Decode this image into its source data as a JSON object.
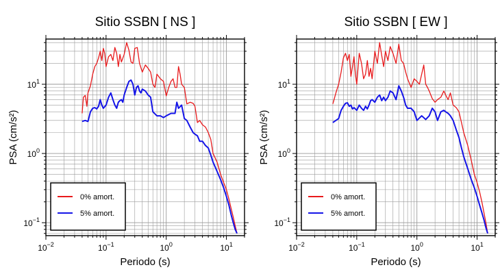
{
  "chart_data": [
    {
      "type": "line",
      "title": "Sitio SSBN [ NS ]",
      "xlabel": "Periodo (s)",
      "ylabel": "PSA (cm/s²)",
      "xscale": "log",
      "yscale": "log",
      "xlim": [
        0.01,
        20
      ],
      "ylim": [
        0.065,
        45
      ],
      "grid": true,
      "legend_placement": "bottom-left",
      "x_ticks": [
        {
          "value": 0.01,
          "base": "10",
          "exp": "−2"
        },
        {
          "value": 0.1,
          "base": "10",
          "exp": "−1"
        },
        {
          "value": 1,
          "base": "10",
          "exp": "0"
        },
        {
          "value": 10,
          "base": "10",
          "exp": "1"
        }
      ],
      "y_ticks": [
        {
          "value": 0.1,
          "base": "10",
          "exp": "−1"
        },
        {
          "value": 1,
          "base": "10",
          "exp": "0"
        },
        {
          "value": 10,
          "base": "10",
          "exp": "1"
        }
      ],
      "series": [
        {
          "name": "0% amort.",
          "color": "#e8191b",
          "x": [
            0.04,
            0.042,
            0.045,
            0.048,
            0.05,
            0.055,
            0.06,
            0.065,
            0.07,
            0.075,
            0.08,
            0.085,
            0.09,
            0.095,
            0.1,
            0.11,
            0.12,
            0.13,
            0.14,
            0.15,
            0.16,
            0.17,
            0.18,
            0.2,
            0.22,
            0.24,
            0.26,
            0.28,
            0.3,
            0.33,
            0.36,
            0.4,
            0.45,
            0.5,
            0.55,
            0.6,
            0.65,
            0.7,
            0.8,
            0.9,
            1.0,
            1.1,
            1.2,
            1.3,
            1.4,
            1.5,
            1.6,
            1.7,
            1.8,
            2.0,
            2.2,
            2.5,
            2.8,
            3.0,
            3.3,
            3.6,
            4.0,
            4.5,
            5.0,
            5.5,
            6.0,
            7.0,
            8.0,
            9.0,
            10.0,
            11.0,
            12.0,
            13.0,
            14.0,
            15.0
          ],
          "values": [
            3.8,
            6.5,
            6.9,
            4.8,
            7.5,
            9.5,
            14,
            18,
            20,
            24,
            30,
            22,
            33,
            28,
            18,
            25,
            27,
            22,
            34,
            28,
            18,
            27,
            21,
            27,
            40,
            31,
            21,
            20,
            33,
            34,
            20,
            15,
            19,
            17,
            15,
            10,
            9,
            14,
            12,
            11,
            6.8,
            9,
            11,
            12,
            9,
            9,
            18,
            14,
            10,
            9,
            5.2,
            5.5,
            5.3,
            4.8,
            2.8,
            3.0,
            2.6,
            2.4,
            2.0,
            1.6,
            1.0,
            0.75,
            0.5,
            0.38,
            0.3,
            0.22,
            0.16,
            0.12,
            0.09,
            0.07
          ]
        },
        {
          "name": "5% amort.",
          "color": "#1414e8",
          "x": [
            0.04,
            0.045,
            0.05,
            0.055,
            0.06,
            0.065,
            0.07,
            0.075,
            0.08,
            0.085,
            0.09,
            0.1,
            0.11,
            0.12,
            0.13,
            0.14,
            0.15,
            0.16,
            0.17,
            0.18,
            0.19,
            0.2,
            0.22,
            0.24,
            0.26,
            0.28,
            0.3,
            0.32,
            0.34,
            0.36,
            0.38,
            0.4,
            0.45,
            0.5,
            0.55,
            0.6,
            0.7,
            0.8,
            0.9,
            1.0,
            1.2,
            1.4,
            1.5,
            1.6,
            1.8,
            2.0,
            2.2,
            2.5,
            2.8,
            3.0,
            3.3,
            3.6,
            4.0,
            4.5,
            5.0,
            5.5,
            6.0,
            7.0,
            8.0,
            9.0,
            10.0,
            11.0,
            12.0,
            13.0,
            14.0,
            15.0
          ],
          "values": [
            2.9,
            3.0,
            2.9,
            4.0,
            4.5,
            4.6,
            4.4,
            4.8,
            6.0,
            5.0,
            4.5,
            5.0,
            6.5,
            7.5,
            6.0,
            5.0,
            4.5,
            5.5,
            5.8,
            6.0,
            5.5,
            7.0,
            9.0,
            11,
            11.5,
            10,
            7.0,
            9.0,
            9.5,
            8.0,
            7.5,
            8.5,
            8.0,
            7.0,
            6.5,
            4.0,
            3.5,
            3.5,
            3.3,
            3.5,
            3.8,
            3.8,
            5.5,
            4.5,
            5.0,
            3.2,
            3.0,
            2.4,
            2.0,
            1.9,
            1.8,
            1.5,
            1.5,
            1.3,
            1.2,
            0.95,
            0.75,
            0.55,
            0.42,
            0.32,
            0.24,
            0.18,
            0.13,
            0.1,
            0.08,
            0.07
          ]
        }
      ]
    },
    {
      "type": "line",
      "title": "Sitio SSBN [ EW ]",
      "xlabel": "Periodo (s)",
      "ylabel": "PSA (cm/s²)",
      "xscale": "log",
      "yscale": "log",
      "xlim": [
        0.01,
        20
      ],
      "ylim": [
        0.065,
        45
      ],
      "grid": true,
      "legend_placement": "bottom-left",
      "x_ticks": [
        {
          "value": 0.01,
          "base": "10",
          "exp": "−2"
        },
        {
          "value": 0.1,
          "base": "10",
          "exp": "−1"
        },
        {
          "value": 1,
          "base": "10",
          "exp": "0"
        },
        {
          "value": 10,
          "base": "10",
          "exp": "1"
        }
      ],
      "y_ticks": [
        {
          "value": 0.1,
          "base": "10",
          "exp": "−1"
        },
        {
          "value": 1,
          "base": "10",
          "exp": "0"
        },
        {
          "value": 10,
          "base": "10",
          "exp": "1"
        }
      ],
      "series": [
        {
          "name": "0% amort.",
          "color": "#e8191b",
          "x": [
            0.04,
            0.042,
            0.045,
            0.05,
            0.055,
            0.06,
            0.065,
            0.07,
            0.075,
            0.08,
            0.085,
            0.09,
            0.095,
            0.1,
            0.11,
            0.12,
            0.13,
            0.14,
            0.15,
            0.16,
            0.17,
            0.18,
            0.2,
            0.22,
            0.24,
            0.26,
            0.28,
            0.3,
            0.33,
            0.36,
            0.4,
            0.45,
            0.5,
            0.55,
            0.6,
            0.65,
            0.7,
            0.8,
            0.9,
            1.0,
            1.1,
            1.2,
            1.3,
            1.4,
            1.5,
            1.6,
            1.7,
            1.8,
            2.0,
            2.2,
            2.5,
            2.8,
            3.0,
            3.3,
            3.6,
            4.0,
            4.5,
            5.0,
            5.5,
            6.0,
            7.0,
            8.0,
            9.0,
            10.0,
            11.0,
            12.0,
            13.0,
            14.0,
            15.0
          ],
          "values": [
            5.2,
            6.0,
            7.5,
            10,
            15,
            24,
            28,
            22,
            27,
            13,
            18,
            25,
            14,
            10,
            28,
            20,
            12,
            14,
            22,
            13,
            17,
            12,
            30,
            20,
            40,
            26,
            18,
            30,
            22,
            35,
            28,
            20,
            38,
            22,
            20,
            15,
            12,
            9,
            12,
            11,
            10,
            14,
            19,
            10,
            9,
            8,
            7,
            6.2,
            5.5,
            6,
            6.5,
            8,
            7,
            6,
            7.5,
            5,
            4.6,
            4.0,
            2.8,
            2.0,
            1.3,
            0.8,
            0.5,
            0.38,
            0.28,
            0.2,
            0.14,
            0.1,
            0.07
          ]
        },
        {
          "name": "5% amort.",
          "color": "#1414e8",
          "x": [
            0.04,
            0.045,
            0.05,
            0.055,
            0.06,
            0.065,
            0.07,
            0.075,
            0.08,
            0.085,
            0.09,
            0.1,
            0.11,
            0.12,
            0.13,
            0.14,
            0.15,
            0.16,
            0.17,
            0.18,
            0.2,
            0.22,
            0.24,
            0.26,
            0.28,
            0.3,
            0.33,
            0.36,
            0.4,
            0.45,
            0.5,
            0.55,
            0.6,
            0.65,
            0.7,
            0.8,
            0.9,
            1.0,
            1.2,
            1.4,
            1.6,
            1.8,
            2.0,
            2.2,
            2.5,
            2.8,
            3.0,
            3.3,
            3.6,
            4.0,
            4.5,
            5.0,
            5.5,
            6.0,
            7.0,
            8.0,
            9.0,
            10.0,
            11.0,
            12.0,
            13.0,
            14.0,
            15.0
          ],
          "values": [
            2.8,
            3.0,
            3.2,
            4.2,
            4.8,
            5.3,
            5.4,
            4.8,
            5.0,
            4.4,
            4.6,
            4.2,
            5.0,
            4.5,
            4.2,
            4.8,
            4.4,
            5.0,
            5.8,
            6.0,
            5.5,
            6.5,
            7.0,
            5.8,
            6.5,
            5.8,
            6.5,
            8.0,
            7.5,
            6.0,
            9.5,
            8.0,
            6.5,
            5.0,
            4.5,
            4.5,
            4.0,
            3.0,
            3.5,
            3.1,
            3.5,
            4.5,
            4.0,
            3.0,
            4.0,
            4.2,
            4.0,
            3.8,
            3.5,
            3.0,
            2.2,
            1.7,
            1.2,
            0.9,
            0.6,
            0.42,
            0.32,
            0.24,
            0.18,
            0.14,
            0.11,
            0.085,
            0.07
          ]
        }
      ]
    }
  ]
}
